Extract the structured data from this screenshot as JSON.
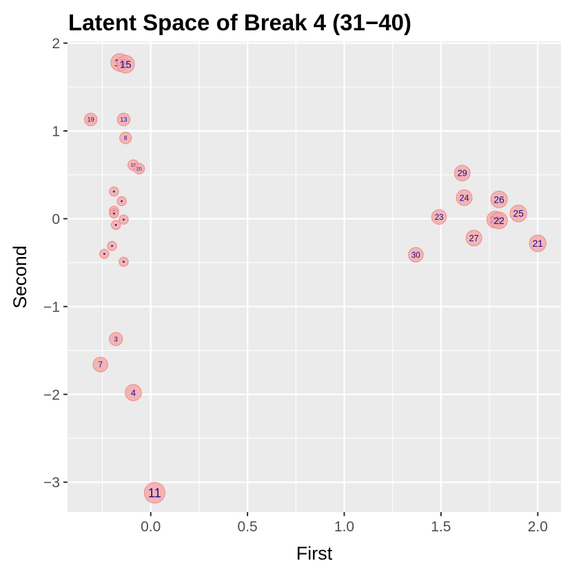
{
  "chart_data": {
    "type": "scatter",
    "title": "Latent Space of Break 4 (31−40)",
    "xlabel": "First",
    "ylabel": "Second",
    "xlim": [
      -0.43,
      2.12
    ],
    "ylim": [
      -3.34,
      2.02
    ],
    "xticks": [
      0.0,
      0.5,
      1.0,
      1.5,
      2.0
    ],
    "xtick_labels": [
      "0.0",
      "0.5",
      "1.0",
      "1.5",
      "2.0"
    ],
    "yticks": [
      2,
      1,
      0,
      -1,
      -2,
      -3
    ],
    "ytick_labels": [
      "2",
      "1",
      "0",
      "−1",
      "−2",
      "−3"
    ],
    "grid": true,
    "legend": "none",
    "colors": {
      "panel": "#ebebeb",
      "grid": "#ffffff",
      "marker_fill": "#f4a6a6",
      "marker_stroke": "#f08a8a",
      "label": "#1a0a8c",
      "tick": "#333333"
    },
    "points": [
      {
        "label": "16",
        "x": -0.16,
        "y": 1.78,
        "size": 1.3
      },
      {
        "label": "15",
        "x": -0.13,
        "y": 1.76,
        "size": 1.3
      },
      {
        "label": "19",
        "x": -0.31,
        "y": 1.13,
        "size": 0.8
      },
      {
        "label": "13",
        "x": -0.14,
        "y": 1.13,
        "size": 0.8
      },
      {
        "label": "8",
        "x": -0.13,
        "y": 0.92,
        "size": 0.7
      },
      {
        "label": "10",
        "x": -0.09,
        "y": 0.61,
        "size": 0.6
      },
      {
        "label": "20",
        "x": -0.06,
        "y": 0.57,
        "size": 0.6
      },
      {
        "label": "",
        "x": -0.19,
        "y": 0.31,
        "size": 0.45
      },
      {
        "label": "",
        "x": -0.15,
        "y": 0.2,
        "size": 0.45
      },
      {
        "label": "",
        "x": -0.19,
        "y": 0.09,
        "size": 0.45
      },
      {
        "label": "",
        "x": -0.19,
        "y": 0.06,
        "size": 0.45
      },
      {
        "label": "",
        "x": -0.14,
        "y": -0.01,
        "size": 0.45
      },
      {
        "label": "",
        "x": -0.18,
        "y": -0.07,
        "size": 0.45
      },
      {
        "label": "",
        "x": -0.2,
        "y": -0.31,
        "size": 0.45
      },
      {
        "label": "",
        "x": -0.24,
        "y": -0.4,
        "size": 0.45
      },
      {
        "label": "",
        "x": -0.14,
        "y": -0.49,
        "size": 0.45
      },
      {
        "label": "3",
        "x": -0.18,
        "y": -1.37,
        "size": 0.85
      },
      {
        "label": "7",
        "x": -0.26,
        "y": -1.66,
        "size": 1.0
      },
      {
        "label": "4",
        "x": -0.09,
        "y": -1.98,
        "size": 1.15
      },
      {
        "label": "11",
        "x": 0.02,
        "y": -3.12,
        "size": 1.6
      },
      {
        "label": "29",
        "x": 1.61,
        "y": 0.52,
        "size": 1.1
      },
      {
        "label": "24",
        "x": 1.62,
        "y": 0.24,
        "size": 1.1
      },
      {
        "label": "26",
        "x": 1.8,
        "y": 0.22,
        "size": 1.2
      },
      {
        "label": "25",
        "x": 1.9,
        "y": 0.06,
        "size": 1.2
      },
      {
        "label": "23",
        "x": 1.49,
        "y": 0.02,
        "size": 1.0
      },
      {
        "label": "28",
        "x": 1.78,
        "y": -0.01,
        "size": 1.2
      },
      {
        "label": "22",
        "x": 1.8,
        "y": -0.02,
        "size": 1.2
      },
      {
        "label": "27",
        "x": 1.67,
        "y": -0.22,
        "size": 1.1
      },
      {
        "label": "21",
        "x": 2.0,
        "y": -0.28,
        "size": 1.2
      },
      {
        "label": "30",
        "x": 1.37,
        "y": -0.41,
        "size": 1.0
      }
    ]
  }
}
